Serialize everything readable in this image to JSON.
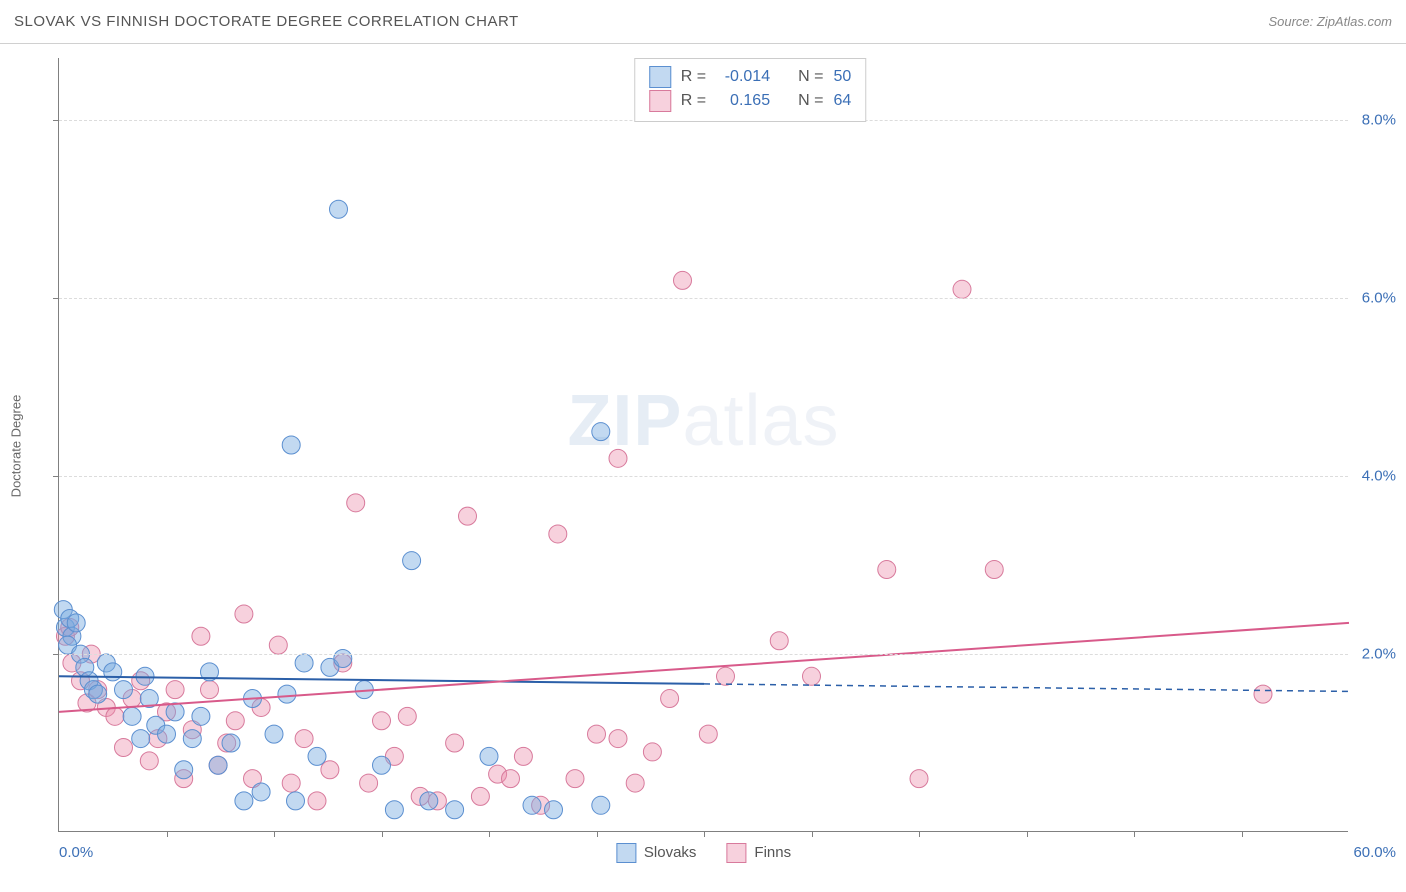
{
  "header": {
    "title": "SLOVAK VS FINNISH DOCTORATE DEGREE CORRELATION CHART",
    "source": "Source: ZipAtlas.com"
  },
  "watermark": {
    "bold": "ZIP",
    "rest": "atlas"
  },
  "yaxis": {
    "label": "Doctorate Degree",
    "min": 0.0,
    "max": 8.7,
    "ticks": [
      2.0,
      4.0,
      6.0,
      8.0
    ],
    "tick_labels": [
      "2.0%",
      "4.0%",
      "6.0%",
      "8.0%"
    ],
    "tick_color": "#3b6fb6",
    "grid_color": "#dcdcdc"
  },
  "xaxis": {
    "min": 0.0,
    "max": 60.0,
    "lo_label": "0.0%",
    "hi_label": "60.0%",
    "minor_ticks": [
      5,
      10,
      15,
      20,
      25,
      30,
      35,
      40,
      45,
      50,
      55
    ],
    "label_color": "#3b6fb6"
  },
  "series": {
    "slovaks": {
      "label": "Slovaks",
      "fill": "rgba(120,170,225,0.45)",
      "stroke": "#5b8fd0",
      "marker_r": 9,
      "trend": {
        "solid_to_x": 30.0,
        "y0": 1.75,
        "y1_at_60": 1.58,
        "color": "#2b5fa8",
        "width": 2
      },
      "R": "-0.014",
      "N": "50",
      "points": [
        [
          0.2,
          2.5
        ],
        [
          0.3,
          2.3
        ],
        [
          0.5,
          2.4
        ],
        [
          0.6,
          2.2
        ],
        [
          0.8,
          2.35
        ],
        [
          0.4,
          2.1
        ],
        [
          1.0,
          2.0
        ],
        [
          1.2,
          1.85
        ],
        [
          1.4,
          1.7
        ],
        [
          1.6,
          1.6
        ],
        [
          1.8,
          1.55
        ],
        [
          2.2,
          1.9
        ],
        [
          2.5,
          1.8
        ],
        [
          3.0,
          1.6
        ],
        [
          3.4,
          1.3
        ],
        [
          3.8,
          1.05
        ],
        [
          4.0,
          1.75
        ],
        [
          4.2,
          1.5
        ],
        [
          4.5,
          1.2
        ],
        [
          5.0,
          1.1
        ],
        [
          5.4,
          1.35
        ],
        [
          5.8,
          0.7
        ],
        [
          6.2,
          1.05
        ],
        [
          6.6,
          1.3
        ],
        [
          7.0,
          1.8
        ],
        [
          7.4,
          0.75
        ],
        [
          8.0,
          1.0
        ],
        [
          8.6,
          0.35
        ],
        [
          9.0,
          1.5
        ],
        [
          9.4,
          0.45
        ],
        [
          10.0,
          1.1
        ],
        [
          10.6,
          1.55
        ],
        [
          11.0,
          0.35
        ],
        [
          11.4,
          1.9
        ],
        [
          12.0,
          0.85
        ],
        [
          12.6,
          1.85
        ],
        [
          13.2,
          1.95
        ],
        [
          14.2,
          1.6
        ],
        [
          15.0,
          0.75
        ],
        [
          15.6,
          0.25
        ],
        [
          16.4,
          3.05
        ],
        [
          17.2,
          0.35
        ],
        [
          18.4,
          0.25
        ],
        [
          20.0,
          0.85
        ],
        [
          22.0,
          0.3
        ],
        [
          23.0,
          0.25
        ],
        [
          10.8,
          4.35
        ],
        [
          13.0,
          7.0
        ],
        [
          25.2,
          4.5
        ],
        [
          25.2,
          0.3
        ]
      ]
    },
    "finns": {
      "label": "Finns",
      "fill": "rgba(235,140,170,0.40)",
      "stroke": "#d87a9c",
      "marker_r": 9,
      "trend": {
        "y0": 1.35,
        "y1_at_60": 2.35,
        "color": "#d85a8a",
        "width": 2
      },
      "R": "0.165",
      "N": "64",
      "points": [
        [
          0.3,
          2.2
        ],
        [
          0.6,
          1.9
        ],
        [
          1.0,
          1.7
        ],
        [
          1.3,
          1.45
        ],
        [
          1.8,
          1.6
        ],
        [
          2.2,
          1.4
        ],
        [
          2.6,
          1.3
        ],
        [
          3.0,
          0.95
        ],
        [
          3.4,
          1.5
        ],
        [
          3.8,
          1.7
        ],
        [
          4.2,
          0.8
        ],
        [
          4.6,
          1.05
        ],
        [
          5.0,
          1.35
        ],
        [
          5.4,
          1.6
        ],
        [
          5.8,
          0.6
        ],
        [
          6.2,
          1.15
        ],
        [
          6.6,
          2.2
        ],
        [
          7.0,
          1.6
        ],
        [
          7.4,
          0.75
        ],
        [
          7.8,
          1.0
        ],
        [
          8.2,
          1.25
        ],
        [
          8.6,
          2.45
        ],
        [
          9.0,
          0.6
        ],
        [
          9.4,
          1.4
        ],
        [
          10.2,
          2.1
        ],
        [
          10.8,
          0.55
        ],
        [
          11.4,
          1.05
        ],
        [
          12.0,
          0.35
        ],
        [
          12.6,
          0.7
        ],
        [
          13.2,
          1.9
        ],
        [
          13.8,
          3.7
        ],
        [
          14.4,
          0.55
        ],
        [
          15.0,
          1.25
        ],
        [
          15.6,
          0.85
        ],
        [
          16.2,
          1.3
        ],
        [
          16.8,
          0.4
        ],
        [
          17.6,
          0.35
        ],
        [
          18.4,
          1.0
        ],
        [
          19.0,
          3.55
        ],
        [
          19.6,
          0.4
        ],
        [
          20.4,
          0.65
        ],
        [
          21.0,
          0.6
        ],
        [
          21.6,
          0.85
        ],
        [
          22.4,
          0.3
        ],
        [
          23.2,
          3.35
        ],
        [
          24.0,
          0.6
        ],
        [
          25.0,
          1.1
        ],
        [
          26.0,
          1.05
        ],
        [
          26.8,
          0.55
        ],
        [
          27.6,
          0.9
        ],
        [
          28.4,
          1.5
        ],
        [
          29.0,
          6.2
        ],
        [
          30.2,
          1.1
        ],
        [
          31.0,
          1.75
        ],
        [
          33.5,
          2.15
        ],
        [
          35.0,
          1.75
        ],
        [
          38.5,
          2.95
        ],
        [
          40.0,
          0.6
        ],
        [
          42.0,
          6.1
        ],
        [
          43.5,
          2.95
        ],
        [
          56.0,
          1.55
        ],
        [
          0.5,
          2.3
        ],
        [
          1.5,
          2.0
        ],
        [
          26.0,
          4.2
        ]
      ]
    }
  },
  "legendbox": {
    "rows": [
      {
        "swatch": "slovaks",
        "R_label": "R =",
        "R": "-0.014",
        "N_label": "N =",
        "N": "50"
      },
      {
        "swatch": "finns",
        "R_label": "R =",
        "R": "0.165",
        "N_label": "N =",
        "N": "64"
      }
    ]
  },
  "colors": {
    "title": "#555555",
    "source": "#888888",
    "axis": "#808080"
  }
}
